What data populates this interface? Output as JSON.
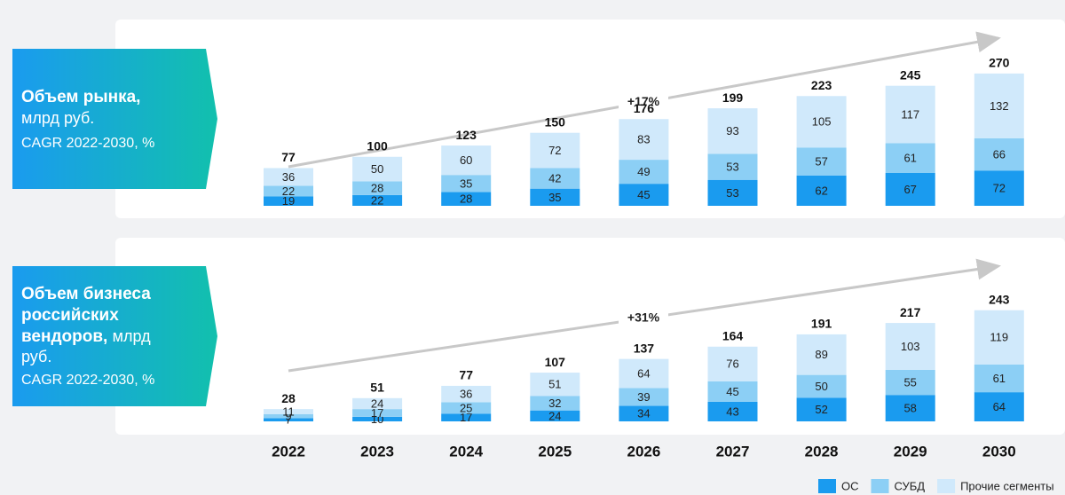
{
  "chart_data": [
    {
      "type": "stacked-bar",
      "title_lines": [
        "Объем рынка,"
      ],
      "unit_lines": [
        "млрд руб."
      ],
      "subtitle": "CAGR 2022-2030, %",
      "annotation": "+17%",
      "categories": [
        "2022",
        "2023",
        "2024",
        "2025",
        "2026",
        "2027",
        "2028",
        "2029",
        "2030"
      ],
      "totals": [
        77,
        100,
        123,
        150,
        176,
        199,
        223,
        245,
        270
      ],
      "ylim": [
        0,
        344
      ],
      "series": [
        {
          "name": "ОС",
          "color": "#1a9bef",
          "values": [
            19,
            22,
            28,
            35,
            45,
            53,
            62,
            67,
            72
          ]
        },
        {
          "name": "СУБД",
          "color": "#8ccff5",
          "values": [
            22,
            28,
            35,
            42,
            49,
            53,
            57,
            61,
            66
          ]
        },
        {
          "name": "Прочие сегменты",
          "color": "#d0e9fb",
          "values": [
            36,
            50,
            60,
            72,
            83,
            93,
            105,
            117,
            132
          ]
        }
      ]
    },
    {
      "type": "stacked-bar",
      "title_lines": [
        "Объем бизнеса",
        "российских",
        "вендоров,"
      ],
      "unit_lines": [
        "млрд",
        "руб."
      ],
      "subtitle": "CAGR 2022-2030, %",
      "annotation": "+31%",
      "totals": [
        28,
        51,
        77,
        107,
        137,
        164,
        191,
        217,
        243
      ],
      "ylim": [
        0,
        370
      ],
      "series": [
        {
          "color": "#1a9bef",
          "values": [
            7,
            10,
            17,
            24,
            34,
            43,
            52,
            58,
            64
          ]
        },
        {
          "color": "#8ccff5",
          "values": [
            9,
            17,
            25,
            32,
            39,
            45,
            50,
            55,
            61
          ]
        },
        {
          "color": "#d0e9fb",
          "values": [
            11,
            24,
            36,
            51,
            64,
            76,
            89,
            103,
            119
          ]
        }
      ]
    }
  ]
}
